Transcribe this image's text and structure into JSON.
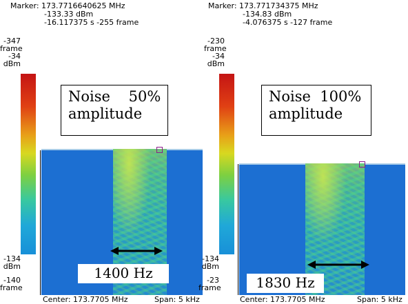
{
  "left": {
    "marker": {
      "freq": "Marker: 173.7716640625 MHz",
      "dbm": "-133.33 dBm",
      "time": "-16.117375 s  -255 frame"
    },
    "axis_top": [
      "-347",
      "frame",
      "-34",
      "dBm"
    ],
    "axis_bottom": [
      "-134",
      "dBm",
      "-140",
      "frame"
    ],
    "overlay": [
      "Noise    50%",
      "amplitude"
    ],
    "bandwidth": "1400 Hz",
    "center": "Center: 173.7705 MHz",
    "span": "Span: 5 kHz"
  },
  "right": {
    "marker": {
      "freq": "Marker: 173.771734375 MHz",
      "dbm": "-134.83 dBm",
      "time": "-4.076375 s  -127 frame"
    },
    "axis_top": [
      "-230",
      "frame",
      "-34",
      "dBm"
    ],
    "axis_bottom": [
      "-134",
      "dBm",
      "-23",
      "frame"
    ],
    "overlay": [
      "Noise  100%",
      "amplitude"
    ],
    "bandwidth": "1830 Hz",
    "center": "Center: 173.7705 MHz",
    "span": "Span: 5 kHz"
  },
  "colors": {
    "spectrogram_bg": "#1c6fd2",
    "marker": "#8a1a8a"
  }
}
